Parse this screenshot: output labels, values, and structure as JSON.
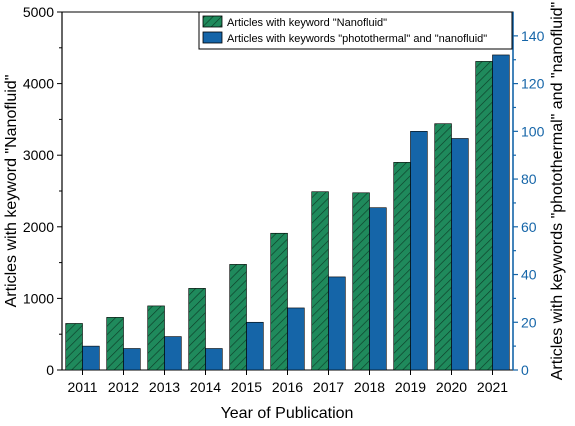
{
  "chart_data": {
    "type": "bar",
    "categories": [
      "2011",
      "2012",
      "2013",
      "2014",
      "2015",
      "2016",
      "2017",
      "2018",
      "2019",
      "2020",
      "2021"
    ],
    "xlabel": "Year of Publication",
    "ylabel_left": "Articles with keyword \"Nanofluid\"",
    "ylabel_right": "Articles with keywords \"photothermal\" and \"nanofluid\"",
    "ylim_left": [
      0,
      5000
    ],
    "ylim_right": [
      0,
      150
    ],
    "yticks_left": [
      "0",
      "1000",
      "2000",
      "3000",
      "4000",
      "5000"
    ],
    "yticks_right": [
      "0",
      "20",
      "40",
      "60",
      "80",
      "100",
      "120",
      "140"
    ],
    "series": [
      {
        "name": "Articles with keyword \"Nanofluid\"",
        "axis": "left",
        "color": "#1f8a5c",
        "pattern": "hatch",
        "values": [
          650,
          735,
          895,
          1140,
          1475,
          1910,
          2490,
          2475,
          2900,
          3440,
          4310
        ]
      },
      {
        "name": "Articles with keywords \"photothermal\" and \"nanofluid\"",
        "axis": "right",
        "color": "#1565a8",
        "pattern": "solid",
        "values": [
          10,
          9,
          14,
          9,
          20,
          26,
          39,
          68,
          100,
          97,
          132
        ]
      }
    ],
    "legend": "top-right",
    "grid": false
  }
}
